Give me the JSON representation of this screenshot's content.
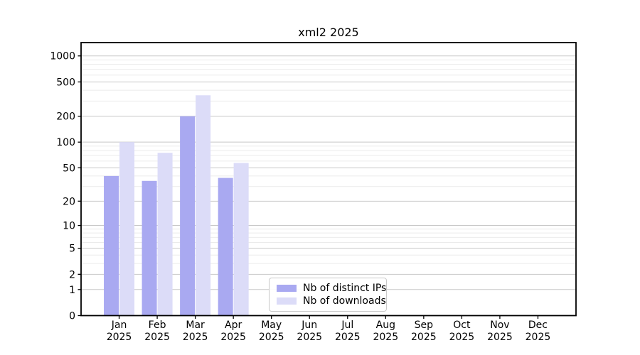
{
  "chart_data": {
    "type": "bar",
    "title": "xml2 2025",
    "categories": [
      "Jan",
      "Feb",
      "Mar",
      "Apr",
      "May",
      "Jun",
      "Jul",
      "Aug",
      "Sep",
      "Oct",
      "Nov",
      "Dec"
    ],
    "x_tick_year": "2025",
    "series": [
      {
        "name": "Nb of distinct IPs",
        "color": "#a9a9f1",
        "values": [
          40,
          35,
          200,
          38,
          0,
          0,
          0,
          0,
          0,
          0,
          0,
          0
        ]
      },
      {
        "name": "Nb of downloads",
        "color": "#dcdcf8",
        "values": [
          100,
          75,
          350,
          57,
          0,
          0,
          0,
          0,
          0,
          0,
          0,
          0
        ]
      }
    ],
    "y_axis": {
      "scale": "log1p",
      "ticks": [
        0,
        1,
        2,
        5,
        10,
        20,
        50,
        100,
        200,
        500,
        1000
      ],
      "minor_gridlines": [
        3,
        4,
        6,
        7,
        8,
        9,
        30,
        40,
        60,
        70,
        80,
        90,
        300,
        400,
        600,
        700,
        800,
        900
      ],
      "ylim": [
        0,
        1400
      ]
    },
    "grid": true,
    "legend_position": "lower-center",
    "colors": {
      "major_grid": "#c8c8c8",
      "minor_grid": "#ebebeb",
      "spine": "#000000",
      "text": "#000000",
      "background": "#ffffff"
    }
  }
}
